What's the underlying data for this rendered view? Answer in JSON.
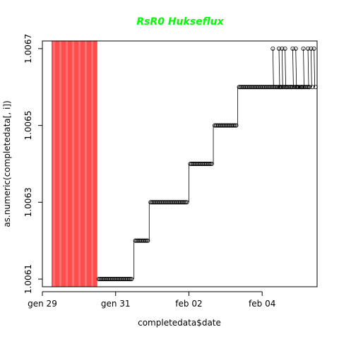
{
  "chart_data": {
    "type": "scatter",
    "title": "RsR0 Hukseflux",
    "title_color": "#00ff00",
    "xlabel": "completedata$date",
    "ylabel": "as.numeric(completedata[, i])",
    "x_ticks": [
      {
        "value": "2024-01-29",
        "label": "gen 29"
      },
      {
        "value": "2024-01-31",
        "label": "gen 31"
      },
      {
        "value": "2024-02-02",
        "label": "feb 02"
      },
      {
        "value": "2024-02-04",
        "label": "feb 04"
      }
    ],
    "y_ticks": [
      {
        "value": 1.0061,
        "label": "1.0061"
      },
      {
        "value": 1.0063,
        "label": "1.0063"
      },
      {
        "value": 1.0065,
        "label": "1.0065"
      },
      {
        "value": 1.0067,
        "label": "1.0067"
      }
    ],
    "xlim": [
      "2024-01-29T00:00",
      "2024-02-05T12:00"
    ],
    "ylim": [
      1.00608,
      1.00672
    ],
    "grid": false,
    "legend": "none",
    "highlight_band": {
      "x": [
        "2024-01-29T06:00",
        "2024-01-30T12:00"
      ],
      "color": "#ff3333"
    },
    "point_color": "#000000",
    "steps": [
      {
        "x_start": "2024-01-30T12:00",
        "x_end": "2024-01-31T12:00",
        "y": 1.0061
      },
      {
        "x_start": "2024-01-31T12:00",
        "x_end": "2024-01-31T22:00",
        "y": 1.0062
      },
      {
        "x_start": "2024-01-31T22:00",
        "x_end": "2024-02-02T00:00",
        "y": 1.0063
      },
      {
        "x_start": "2024-02-02T00:00",
        "x_end": "2024-02-02T16:00",
        "y": 1.0064
      },
      {
        "x_start": "2024-02-02T16:00",
        "x_end": "2024-02-03T08:00",
        "y": 1.0065
      },
      {
        "x_start": "2024-02-03T08:00",
        "x_end": "2024-02-05T08:00",
        "y": 1.0066
      }
    ],
    "upper_points": [
      {
        "x": "2024-02-04T07:00",
        "y": 1.0067
      },
      {
        "x": "2024-02-04T11:00",
        "y": 1.0067
      },
      {
        "x": "2024-02-04T13:00",
        "y": 1.0067
      },
      {
        "x": "2024-02-04T15:00",
        "y": 1.0067
      },
      {
        "x": "2024-02-04T20:00",
        "y": 1.0067
      },
      {
        "x": "2024-02-04T22:00",
        "y": 1.0067
      },
      {
        "x": "2024-02-05T03:00",
        "y": 1.0067
      },
      {
        "x": "2024-02-05T06:00",
        "y": 1.0067
      },
      {
        "x": "2024-02-05T08:00",
        "y": 1.0067
      },
      {
        "x": "2024-02-05T10:00",
        "y": 1.0067
      }
    ],
    "lower_points": [
      {
        "x": "2024-02-04T12:00",
        "y": 1.0066
      },
      {
        "x": "2024-02-04T16:00",
        "y": 1.0066
      },
      {
        "x": "2024-02-04T19:00",
        "y": 1.0066
      },
      {
        "x": "2024-02-04T23:00",
        "y": 1.0066
      },
      {
        "x": "2024-02-05T02:00",
        "y": 1.0066
      },
      {
        "x": "2024-02-05T07:00",
        "y": 1.0066
      },
      {
        "x": "2024-02-05T09:00",
        "y": 1.0066
      },
      {
        "x": "2024-02-05T11:00",
        "y": 1.0066
      }
    ]
  }
}
